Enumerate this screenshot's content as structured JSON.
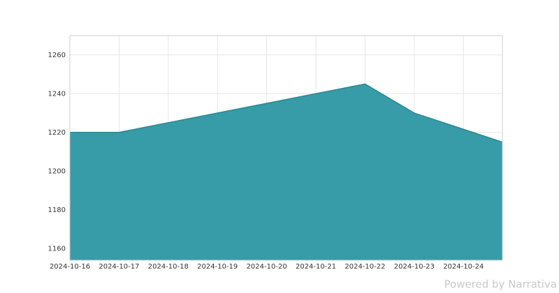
{
  "chart_data": {
    "type": "area",
    "x": [
      "2024-10-16",
      "2024-10-17",
      "2024-10-18",
      "2024-10-19",
      "2024-10-20",
      "2024-10-21",
      "2024-10-22",
      "2024-10-23",
      "2024-10-24 19:00"
    ],
    "values": [
      1220,
      1220,
      1225,
      1230,
      1235,
      1240,
      1245,
      1230,
      1215
    ],
    "color": "#3399a6",
    "xlim": [
      "2024-10-16",
      "2024-10-24 19:00"
    ],
    "xticks": [
      "2024-10-16",
      "2024-10-17",
      "2024-10-18",
      "2024-10-19",
      "2024-10-20",
      "2024-10-21",
      "2024-10-22",
      "2024-10-23",
      "2024-10-24"
    ],
    "ylim": [
      1154,
      1270
    ],
    "yticks": [
      1160,
      1180,
      1200,
      1220,
      1240,
      1260
    ],
    "grid": true,
    "watermark": "Powered by Narrativa"
  }
}
